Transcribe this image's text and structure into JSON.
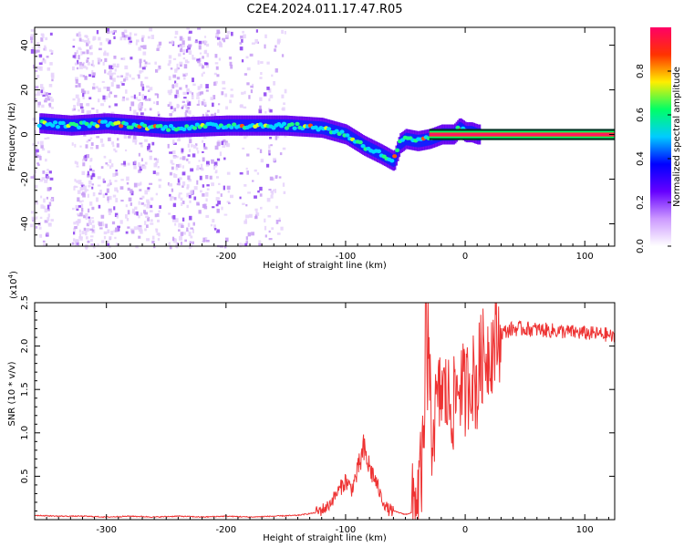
{
  "title": "C2E4.2024.011.17.47.R05",
  "chart_data": [
    {
      "type": "heatmap",
      "xlabel": "Height of straight line (km)",
      "ylabel": "Frequency (Hz)",
      "xlim": [
        -360,
        125
      ],
      "ylim": [
        -50,
        48
      ],
      "xticks": [
        -300,
        -200,
        -100,
        0,
        100
      ],
      "xtick_labels": [
        "-300",
        "-200",
        "-100",
        "0",
        "100"
      ],
      "yticks": [
        40,
        20,
        0,
        -20,
        -40
      ],
      "ytick_labels": [
        "40",
        "20",
        "0",
        "-20",
        "-40"
      ],
      "colorbar": {
        "label": "Normalized spectral amplitude",
        "range": [
          0,
          1
        ],
        "ticks": [
          0.0,
          0.2,
          0.4,
          0.6,
          0.8
        ],
        "tick_labels": [
          "0.0",
          "0.2",
          "0.4",
          "0.6",
          "0.8"
        ],
        "colors": [
          "#ffffff",
          "#cc99ff",
          "#6600ff",
          "#0000ff",
          "#00ccff",
          "#00ff66",
          "#ffee00",
          "#ff3300",
          "#ff0066"
        ]
      },
      "ridge": {
        "x": [
          -355,
          -330,
          -300,
          -250,
          -200,
          -150,
          -120,
          -100,
          -85,
          -70,
          -60,
          -55,
          -50,
          -40,
          -30,
          -20,
          -10,
          -5,
          0,
          5,
          10,
          125
        ],
        "y": [
          5,
          4,
          5,
          3,
          4,
          4,
          3,
          0,
          -5,
          -9,
          -12,
          -4,
          -2,
          -3,
          -2,
          0,
          0,
          3,
          1,
          1,
          0,
          0
        ]
      },
      "grid": false
    },
    {
      "type": "line",
      "xlabel": "Height of straight line (km)",
      "ylabel": "SNR (10 * v/v)",
      "multiplier_label": "(x10",
      "multiplier_exp": "4",
      "xlim": [
        -360,
        125
      ],
      "ylim": [
        0,
        2.5
      ],
      "xticks": [
        -300,
        -200,
        -100,
        0,
        100
      ],
      "xtick_labels": [
        "-300",
        "-200",
        "-100",
        "0",
        "100"
      ],
      "yticks": [
        0.5,
        1.0,
        1.5,
        2.0,
        2.5
      ],
      "ytick_labels": [
        "0.5",
        "1.0",
        "1.5",
        "2.0",
        "2.5"
      ],
      "color": "#ee3333",
      "series": [
        {
          "x": [
            -360,
            -340,
            -320,
            -300,
            -280,
            -260,
            -240,
            -220,
            -200,
            -180,
            -160,
            -140,
            -125,
            -115,
            -110,
            -105,
            -100,
            -95,
            -90,
            -85,
            -80,
            -75,
            -70,
            -65,
            -60,
            -55,
            -50,
            -45,
            -40,
            -35,
            -32,
            -30,
            -28,
            -25,
            -20,
            -15,
            -10,
            -5,
            0,
            5,
            10,
            12,
            15,
            20,
            25,
            30,
            40,
            50,
            60,
            80,
            100,
            120,
            125
          ],
          "y": [
            0.05,
            0.04,
            0.04,
            0.03,
            0.04,
            0.03,
            0.04,
            0.03,
            0.04,
            0.03,
            0.04,
            0.05,
            0.08,
            0.15,
            0.25,
            0.35,
            0.45,
            0.35,
            0.55,
            0.8,
            0.6,
            0.45,
            0.25,
            0.12,
            0.1,
            0.08,
            0.06,
            0.08,
            0.3,
            0.7,
            1.3,
            1.6,
            1.0,
            1.2,
            1.5,
            1.4,
            1.3,
            1.6,
            1.45,
            1.7,
            1.5,
            1.8,
            1.9,
            1.95,
            2.05,
            2.15,
            2.2,
            2.2,
            2.19,
            2.17,
            2.15,
            2.13,
            2.08
          ]
        }
      ],
      "grid": false
    }
  ]
}
